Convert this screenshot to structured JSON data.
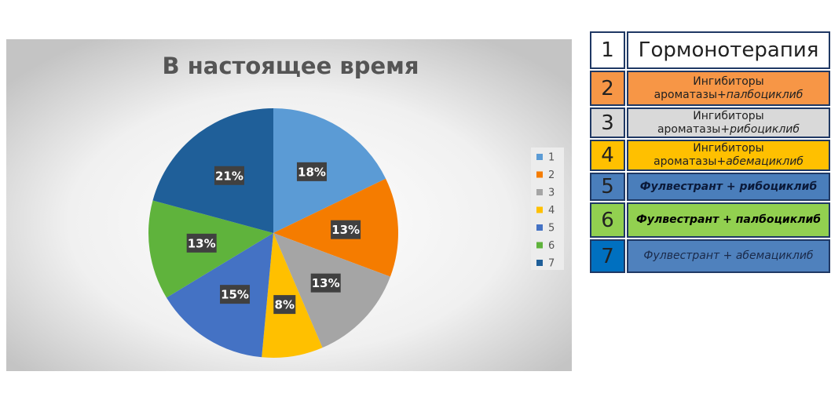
{
  "chart_data": {
    "type": "pie",
    "title": "В настоящее время",
    "categories": [
      "1",
      "2",
      "3",
      "4",
      "5",
      "6",
      "7"
    ],
    "values": [
      18,
      13,
      13,
      8,
      15,
      13,
      21
    ],
    "value_labels": [
      "18%",
      "13%",
      "13%",
      "8%",
      "15%",
      "13%",
      "21%"
    ],
    "colors": [
      "#5b9bd5",
      "#f57c00",
      "#a5a5a5",
      "#ffc000",
      "#4472c4",
      "#5fb33c",
      "#1f5f99"
    ],
    "legend": "right"
  },
  "table": {
    "rows": [
      {
        "number": "1",
        "text": "Гормонотерапия"
      },
      {
        "number": "2",
        "text": "Ингибиторы ароматазы+",
        "italic": "палбоциклиб"
      },
      {
        "number": "3",
        "text": "Ингибиторы ароматазы+",
        "italic": "рибоциклиб"
      },
      {
        "number": "4",
        "text": "Ингибиторы ароматазы+",
        "italic": "абемациклиб"
      },
      {
        "number": "5",
        "italic": "Фулвестрант + рибоциклиб"
      },
      {
        "number": "6",
        "italic": "Фулвестрант + палбоциклиб"
      },
      {
        "number": "7",
        "italic": "Фулвестрант + абемациклиб"
      }
    ]
  }
}
